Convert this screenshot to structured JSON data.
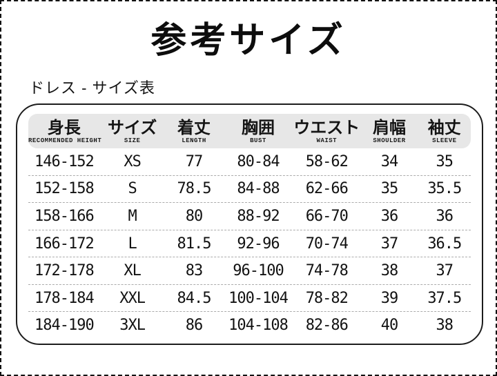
{
  "page": {
    "title": "参考サイズ",
    "section_label": "ドレス - サイズ表"
  },
  "colors": {
    "page_bg": "#ffffff",
    "outer_dashed_border": "#111111",
    "table_border": "#1c1c1c",
    "header_bar_bg": "#e7e7e7",
    "row_separator": "#ababab",
    "text": "#111111"
  },
  "table": {
    "columns": [
      {
        "jp": "身長",
        "en": "RECOMMENDED HEIGHT"
      },
      {
        "jp": "サイズ",
        "en": "SIZE"
      },
      {
        "jp": "着丈",
        "en": "LENGTH"
      },
      {
        "jp": "胸囲",
        "en": "BUST"
      },
      {
        "jp": "ウエスト",
        "en": "WAIST"
      },
      {
        "jp": "肩幅",
        "en": "SHOULDER"
      },
      {
        "jp": "袖丈",
        "en": "SLEEVE"
      }
    ],
    "rows": [
      {
        "cells": [
          "146-152",
          "XS",
          "77",
          "80-84",
          "58-62",
          "34",
          "35"
        ]
      },
      {
        "cells": [
          "152-158",
          "S",
          "78.5",
          "84-88",
          "62-66",
          "35",
          "35.5"
        ]
      },
      {
        "cells": [
          "158-166",
          "M",
          "80",
          "88-92",
          "66-70",
          "36",
          "36"
        ]
      },
      {
        "cells": [
          "166-172",
          "L",
          "81.5",
          "92-96",
          "70-74",
          "37",
          "36.5"
        ]
      },
      {
        "cells": [
          "172-178",
          "XL",
          "83",
          "96-100",
          "74-78",
          "38",
          "37"
        ]
      },
      {
        "cells": [
          "178-184",
          "XXL",
          "84.5",
          "100-104",
          "78-82",
          "39",
          "37.5"
        ]
      },
      {
        "cells": [
          "184-190",
          "3XL",
          "86",
          "104-108",
          "82-86",
          "40",
          "38"
        ]
      }
    ]
  }
}
